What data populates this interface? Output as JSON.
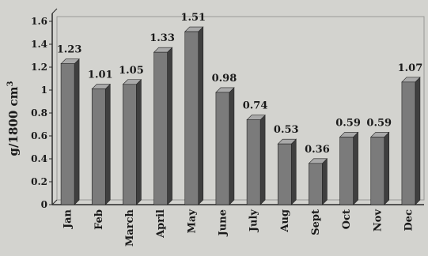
{
  "chart_data": {
    "type": "bar",
    "title": "",
    "xlabel": "",
    "ylabel": "g/1800 cm",
    "ylabel_superscript": "3",
    "categories": [
      "Jan",
      "Feb",
      "March",
      "April",
      "May",
      "June",
      "July",
      "Aug",
      "Sept",
      "Oct",
      "Nov",
      "Dec"
    ],
    "values": [
      1.23,
      1.01,
      1.05,
      1.33,
      1.51,
      0.98,
      0.74,
      0.53,
      0.36,
      0.59,
      0.59,
      1.07
    ],
    "data_labels": [
      "1.23",
      "1.01",
      "1.05",
      "1.33",
      "1.51",
      "0.98",
      "0.74",
      "0.53",
      "0.36",
      "0.59",
      "0.59",
      "1.07"
    ],
    "ylim": [
      0,
      1.6
    ],
    "yticks": [
      "0",
      "0.2",
      "0.4",
      "0.6",
      "0.8",
      "1",
      "1.2",
      "1.4",
      "1.6"
    ],
    "grid": false,
    "bar_style": "3d",
    "colors": {
      "background": "#d3d3cf",
      "bar_front": "#7b7b7b",
      "bar_side": "#3f3f3f",
      "bar_top": "#a9a9a9",
      "axis": "#2a2a2a"
    }
  }
}
